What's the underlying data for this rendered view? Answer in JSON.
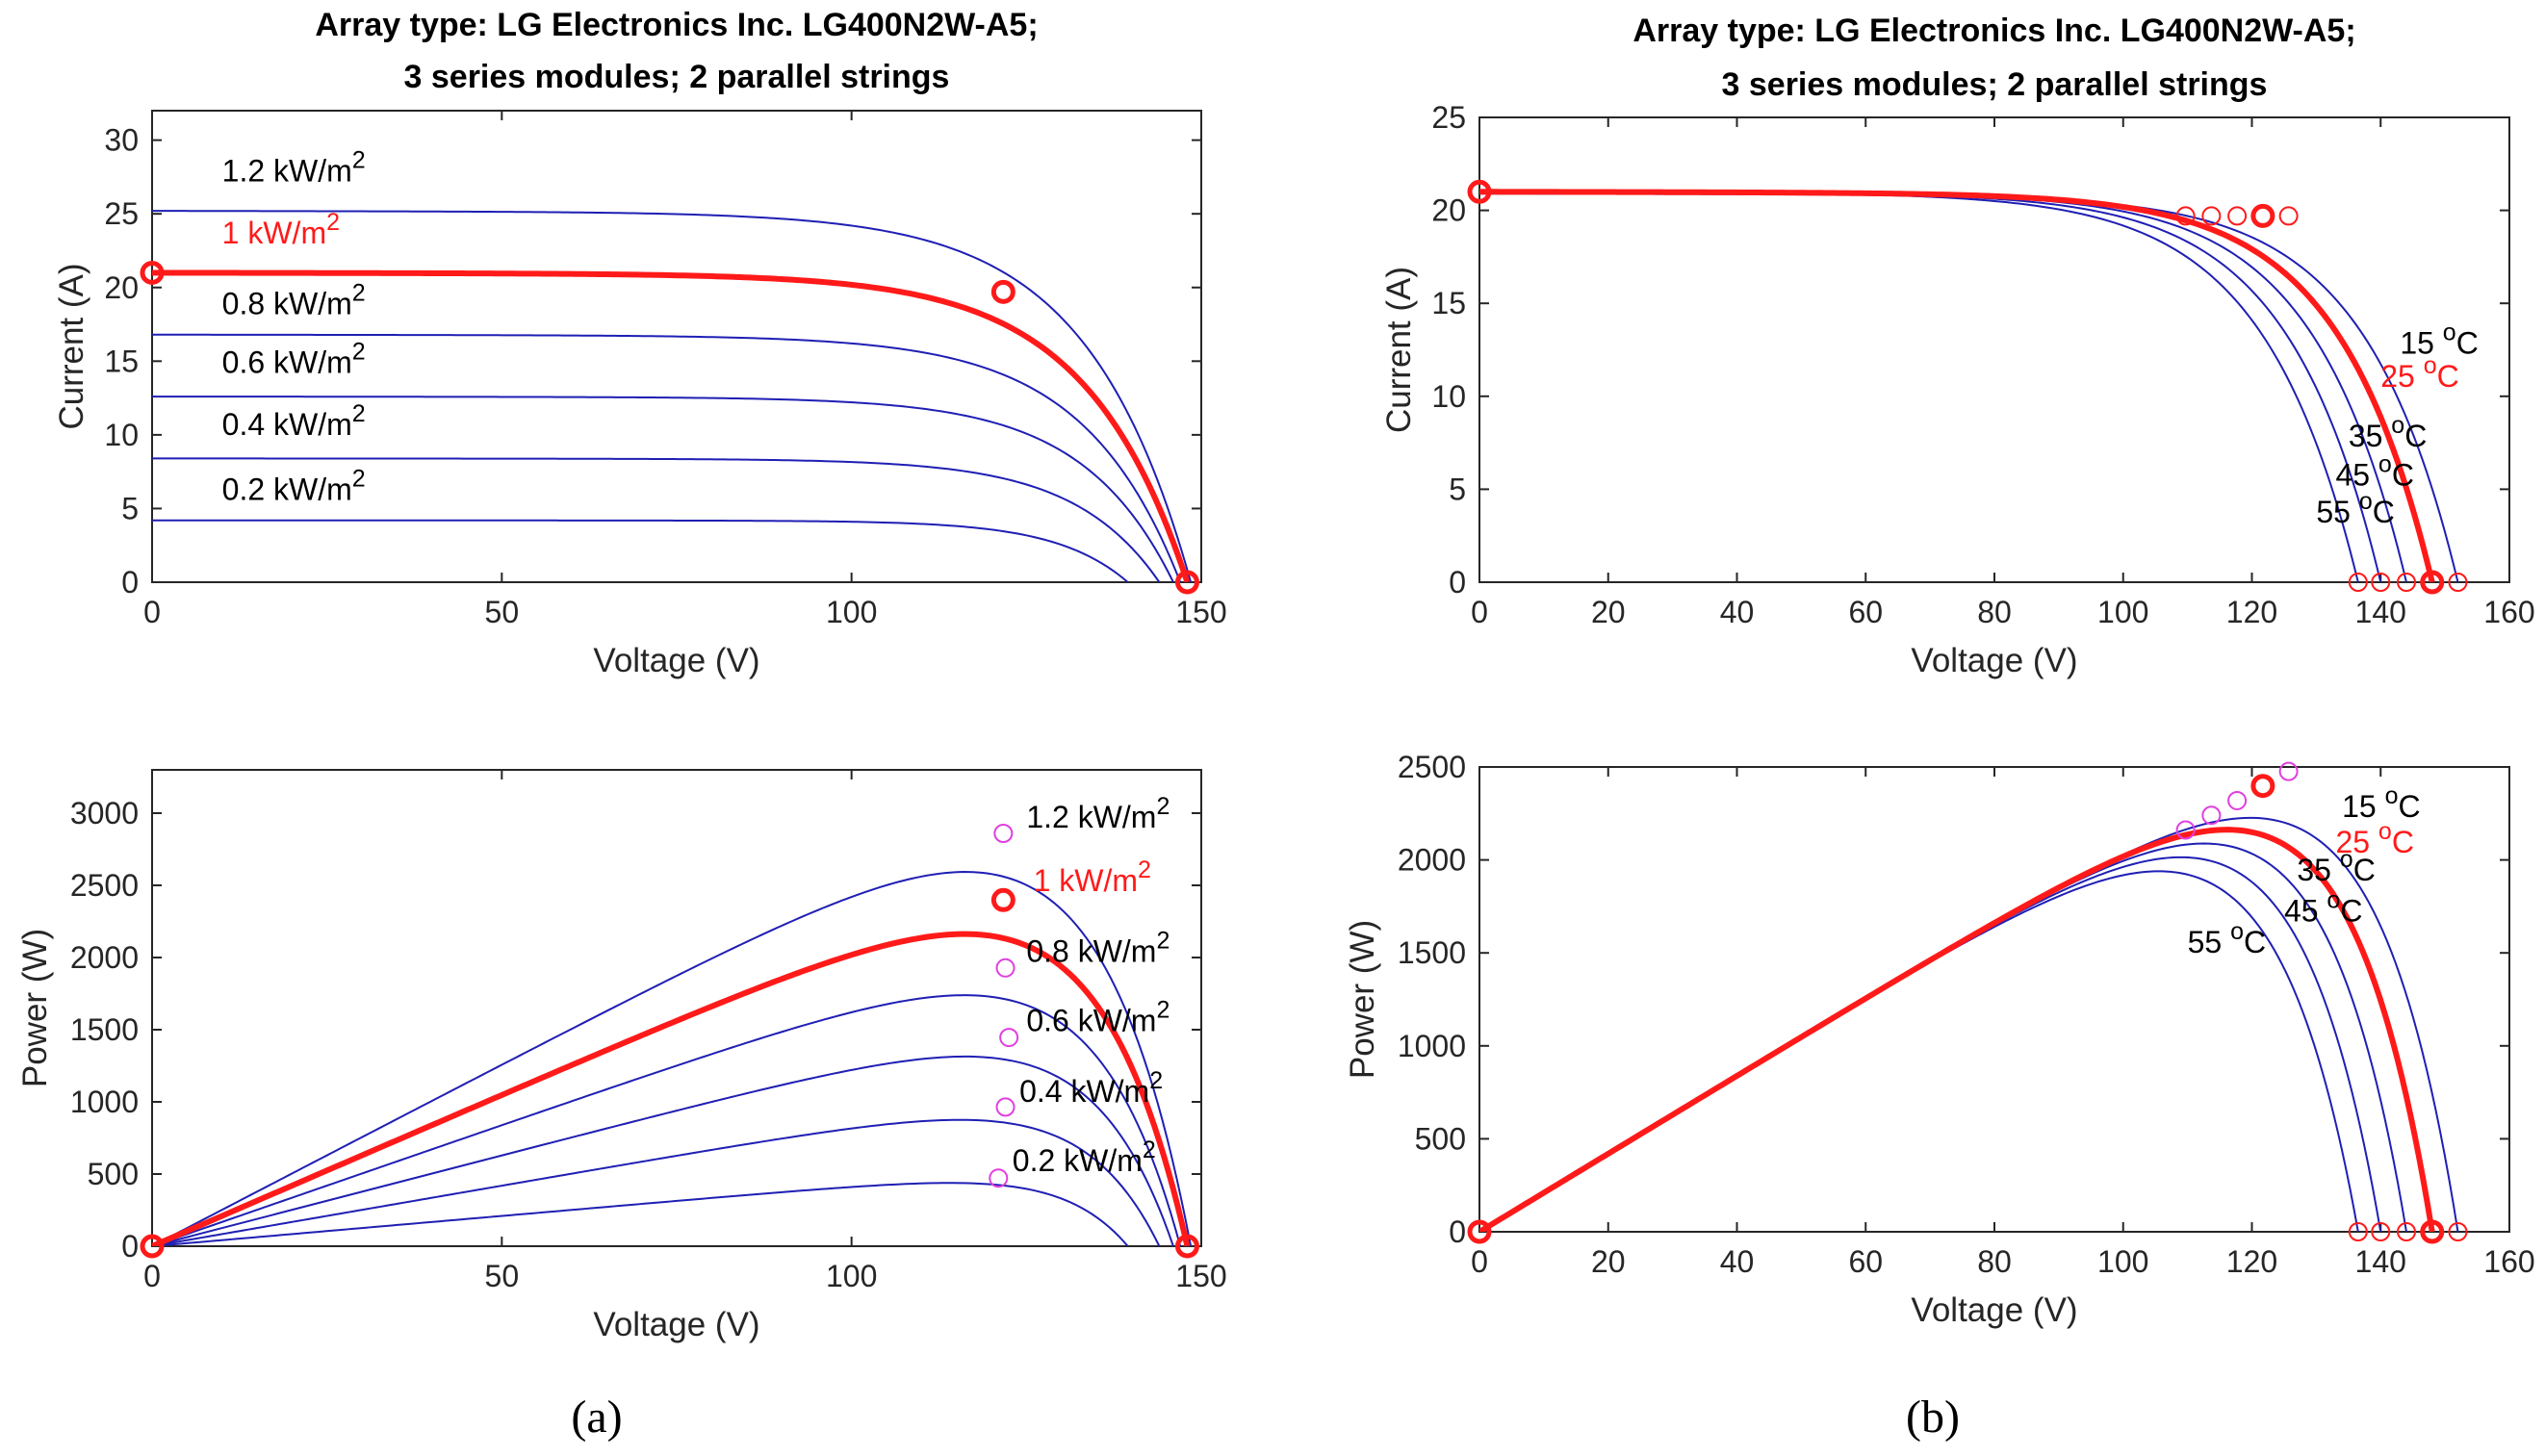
{
  "colors": {
    "blue": "#1f1fb4",
    "red": "#ff1a1a",
    "magenta": "#e040e0",
    "text": "#262626"
  },
  "panel_labels": {
    "a": "(a)",
    "b": "(b)"
  },
  "chart_data": [
    {
      "id": "a-iv",
      "type": "line",
      "title_lines": [
        "Array type: LG Electronics Inc. LG400N2W-A5;",
        "3 series modules; 2 parallel strings"
      ],
      "xlabel": "Voltage (V)",
      "ylabel": "Current (A)",
      "xlim": [
        0,
        150
      ],
      "ylim": [
        0,
        32
      ],
      "xticks": [
        0,
        50,
        100,
        150
      ],
      "yticks": [
        0,
        5,
        10,
        15,
        20,
        25,
        30
      ],
      "series": [
        {
          "name": "1.2 kW/m2",
          "highlight": false,
          "isc": 25.2,
          "voc": 148.5,
          "vmp": 121.7,
          "imp": 23.5
        },
        {
          "name": "1 kW/m2",
          "highlight": true,
          "isc": 21.0,
          "voc": 148.0,
          "vmp": 121.7,
          "imp": 19.7
        },
        {
          "name": "0.8 kW/m2",
          "highlight": false,
          "isc": 16.8,
          "voc": 147.0,
          "vmp": 122.0,
          "imp": 15.8
        },
        {
          "name": "0.6 kW/m2",
          "highlight": false,
          "isc": 12.6,
          "voc": 146.0,
          "vmp": 122.5,
          "imp": 11.8
        },
        {
          "name": "0.4 kW/m2",
          "highlight": false,
          "isc": 8.4,
          "voc": 144.0,
          "vmp": 122.0,
          "imp": 7.9
        },
        {
          "name": "0.2 kW/m2",
          "highlight": false,
          "isc": 4.2,
          "voc": 139.5,
          "vmp": 121.0,
          "imp": 3.9
        }
      ],
      "markers": [
        {
          "x": 0,
          "y": 21.0,
          "style": "red-bold"
        },
        {
          "x": 121.7,
          "y": 19.7,
          "style": "red-bold"
        },
        {
          "x": 148.0,
          "y": 0,
          "style": "red-bold"
        }
      ],
      "annotations": [
        {
          "text": "1.2 kW/m",
          "sup": "2",
          "x": 10,
          "y": 27.2,
          "color": "black"
        },
        {
          "text": "1 kW/m",
          "sup": "2",
          "x": 10,
          "y": 23.0,
          "color": "red"
        },
        {
          "text": "0.8 kW/m",
          "sup": "2",
          "x": 10,
          "y": 18.2,
          "color": "black"
        },
        {
          "text": "0.6 kW/m",
          "sup": "2",
          "x": 10,
          "y": 14.2,
          "color": "black"
        },
        {
          "text": "0.4 kW/m",
          "sup": "2",
          "x": 10,
          "y": 10.0,
          "color": "black"
        },
        {
          "text": "0.2 kW/m",
          "sup": "2",
          "x": 10,
          "y": 5.6,
          "color": "black"
        }
      ]
    },
    {
      "id": "a-pv",
      "type": "line",
      "title_lines": [],
      "xlabel": "Voltage (V)",
      "ylabel": "Power (W)",
      "xlim": [
        0,
        150
      ],
      "ylim": [
        0,
        3300
      ],
      "xticks": [
        0,
        50,
        100,
        150
      ],
      "yticks": [
        0,
        500,
        1000,
        1500,
        2000,
        2500,
        3000
      ],
      "series": [
        {
          "name": "1.2 kW/m2",
          "highlight": false,
          "isc": 25.2,
          "voc": 148.5,
          "vmp": 121.7,
          "imp": 23.5
        },
        {
          "name": "1 kW/m2",
          "highlight": true,
          "isc": 21.0,
          "voc": 148.0,
          "vmp": 121.7,
          "imp": 19.7
        },
        {
          "name": "0.8 kW/m2",
          "highlight": false,
          "isc": 16.8,
          "voc": 147.0,
          "vmp": 122.0,
          "imp": 15.8
        },
        {
          "name": "0.6 kW/m2",
          "highlight": false,
          "isc": 12.6,
          "voc": 146.0,
          "vmp": 122.5,
          "imp": 11.8
        },
        {
          "name": "0.4 kW/m2",
          "highlight": false,
          "isc": 8.4,
          "voc": 144.0,
          "vmp": 122.0,
          "imp": 7.9
        },
        {
          "name": "0.2 kW/m2",
          "highlight": false,
          "isc": 4.2,
          "voc": 139.5,
          "vmp": 121.0,
          "imp": 3.9
        }
      ],
      "markers": [
        {
          "x": 0,
          "y": 0,
          "style": "red-bold"
        },
        {
          "x": 121.7,
          "y": 2398,
          "style": "red-bold"
        },
        {
          "x": 148.0,
          "y": 0,
          "style": "red-bold"
        },
        {
          "x": 121.7,
          "y": 2860,
          "style": "magenta"
        },
        {
          "x": 122.0,
          "y": 1928,
          "style": "magenta"
        },
        {
          "x": 122.5,
          "y": 1446,
          "style": "magenta"
        },
        {
          "x": 122.0,
          "y": 964,
          "style": "magenta"
        },
        {
          "x": 121.0,
          "y": 472,
          "style": "magenta"
        }
      ],
      "annotations": [
        {
          "text": "1.2 kW/m",
          "sup": "2",
          "x": 125,
          "y": 2900,
          "color": "black"
        },
        {
          "text": "1 kW/m",
          "sup": "2",
          "x": 126,
          "y": 2460,
          "color": "red"
        },
        {
          "text": "0.8 kW/m",
          "sup": "2",
          "x": 125,
          "y": 1970,
          "color": "black"
        },
        {
          "text": "0.6 kW/m",
          "sup": "2",
          "x": 125,
          "y": 1490,
          "color": "black"
        },
        {
          "text": "0.4 kW/m",
          "sup": "2",
          "x": 124,
          "y": 1000,
          "color": "black"
        },
        {
          "text": "0.2 kW/m",
          "sup": "2",
          "x": 123,
          "y": 520,
          "color": "black"
        }
      ]
    },
    {
      "id": "b-iv",
      "type": "line",
      "title_lines": [
        "Array type: LG Electronics Inc. LG400N2W-A5;",
        "3 series modules; 2 parallel strings"
      ],
      "xlabel": "Voltage (V)",
      "ylabel": "Current (A)",
      "xlim": [
        0,
        160
      ],
      "ylim": [
        0,
        25
      ],
      "xticks": [
        0,
        20,
        40,
        60,
        80,
        100,
        120,
        140,
        160
      ],
      "yticks": [
        0,
        5,
        10,
        15,
        20,
        25
      ],
      "series": [
        {
          "name": "15 °C",
          "highlight": false,
          "isc": 20.9,
          "voc": 152.0,
          "vmp": 125.7,
          "imp": 19.7
        },
        {
          "name": "25 °C",
          "highlight": true,
          "isc": 21.0,
          "voc": 148.0,
          "vmp": 121.7,
          "imp": 19.7
        },
        {
          "name": "35 °C",
          "highlight": false,
          "isc": 21.0,
          "voc": 144.0,
          "vmp": 117.7,
          "imp": 19.7
        },
        {
          "name": "45 °C",
          "highlight": false,
          "isc": 21.0,
          "voc": 140.0,
          "vmp": 113.7,
          "imp": 19.7
        },
        {
          "name": "55 °C",
          "highlight": false,
          "isc": 21.0,
          "voc": 136.5,
          "vmp": 109.7,
          "imp": 19.7
        }
      ],
      "markers": [
        {
          "x": 0,
          "y": 21.0,
          "style": "red-bold"
        },
        {
          "x": 121.7,
          "y": 19.7,
          "style": "red-bold"
        },
        {
          "x": 148.0,
          "y": 0,
          "style": "red-bold"
        },
        {
          "x": 125.7,
          "y": 19.7,
          "style": "red-thin"
        },
        {
          "x": 117.7,
          "y": 19.7,
          "style": "red-thin"
        },
        {
          "x": 113.7,
          "y": 19.7,
          "style": "red-thin"
        },
        {
          "x": 109.7,
          "y": 19.7,
          "style": "red-thin"
        },
        {
          "x": 152.0,
          "y": 0,
          "style": "red-thin"
        },
        {
          "x": 144.0,
          "y": 0,
          "style": "red-thin"
        },
        {
          "x": 140.0,
          "y": 0,
          "style": "red-thin"
        },
        {
          "x": 136.5,
          "y": 0,
          "style": "red-thin"
        }
      ],
      "annotations": [
        {
          "text": "15 ",
          "sup": "o",
          "tail": "C",
          "x": 143,
          "y": 12.3,
          "color": "black"
        },
        {
          "text": "25 ",
          "sup": "o",
          "tail": "C",
          "x": 140,
          "y": 10.5,
          "color": "red"
        },
        {
          "text": "35 ",
          "sup": "o",
          "tail": "C",
          "x": 135,
          "y": 7.3,
          "color": "black"
        },
        {
          "text": "45 ",
          "sup": "o",
          "tail": "C",
          "x": 133,
          "y": 5.2,
          "color": "black"
        },
        {
          "text": "55 ",
          "sup": "o",
          "tail": "C",
          "x": 130,
          "y": 3.2,
          "color": "black"
        }
      ]
    },
    {
      "id": "b-pv",
      "type": "line",
      "title_lines": [],
      "xlabel": "Voltage (V)",
      "ylabel": "Power (W)",
      "xlim": [
        0,
        160
      ],
      "ylim": [
        0,
        2500
      ],
      "xticks": [
        0,
        20,
        40,
        60,
        80,
        100,
        120,
        140,
        160
      ],
      "yticks": [
        0,
        500,
        1000,
        1500,
        2000,
        2500
      ],
      "series": [
        {
          "name": "15 °C",
          "highlight": false,
          "isc": 20.9,
          "voc": 152.0,
          "vmp": 125.7,
          "imp": 19.7
        },
        {
          "name": "25 °C",
          "highlight": true,
          "isc": 21.0,
          "voc": 148.0,
          "vmp": 121.7,
          "imp": 19.7
        },
        {
          "name": "35 °C",
          "highlight": false,
          "isc": 21.0,
          "voc": 144.0,
          "vmp": 117.7,
          "imp": 19.7
        },
        {
          "name": "45 °C",
          "highlight": false,
          "isc": 21.0,
          "voc": 140.0,
          "vmp": 113.7,
          "imp": 19.7
        },
        {
          "name": "55 °C",
          "highlight": false,
          "isc": 21.0,
          "voc": 136.5,
          "vmp": 109.7,
          "imp": 19.7
        }
      ],
      "markers": [
        {
          "x": 0,
          "y": 0,
          "style": "red-bold"
        },
        {
          "x": 121.7,
          "y": 2398,
          "style": "red-bold"
        },
        {
          "x": 148.0,
          "y": 0,
          "style": "red-bold"
        },
        {
          "x": 125.7,
          "y": 2476,
          "style": "magenta"
        },
        {
          "x": 117.7,
          "y": 2319,
          "style": "magenta"
        },
        {
          "x": 113.7,
          "y": 2240,
          "style": "magenta"
        },
        {
          "x": 109.7,
          "y": 2161,
          "style": "magenta"
        },
        {
          "x": 152.0,
          "y": 0,
          "style": "red-thin"
        },
        {
          "x": 144.0,
          "y": 0,
          "style": "red-thin"
        },
        {
          "x": 140.0,
          "y": 0,
          "style": "red-thin"
        },
        {
          "x": 136.5,
          "y": 0,
          "style": "red-thin"
        }
      ],
      "annotations": [
        {
          "text": "15 ",
          "sup": "o",
          "tail": "C",
          "x": 134,
          "y": 2230,
          "color": "black"
        },
        {
          "text": "25 ",
          "sup": "o",
          "tail": "C",
          "x": 133,
          "y": 2040,
          "color": "red"
        },
        {
          "text": "35 ",
          "sup": "o",
          "tail": "C",
          "x": 127,
          "y": 1890,
          "color": "black"
        },
        {
          "text": "45 ",
          "sup": "o",
          "tail": "C",
          "x": 125,
          "y": 1670,
          "color": "black"
        },
        {
          "text": "55 ",
          "sup": "o",
          "tail": "C",
          "x": 110,
          "y": 1500,
          "color": "black"
        }
      ]
    }
  ]
}
